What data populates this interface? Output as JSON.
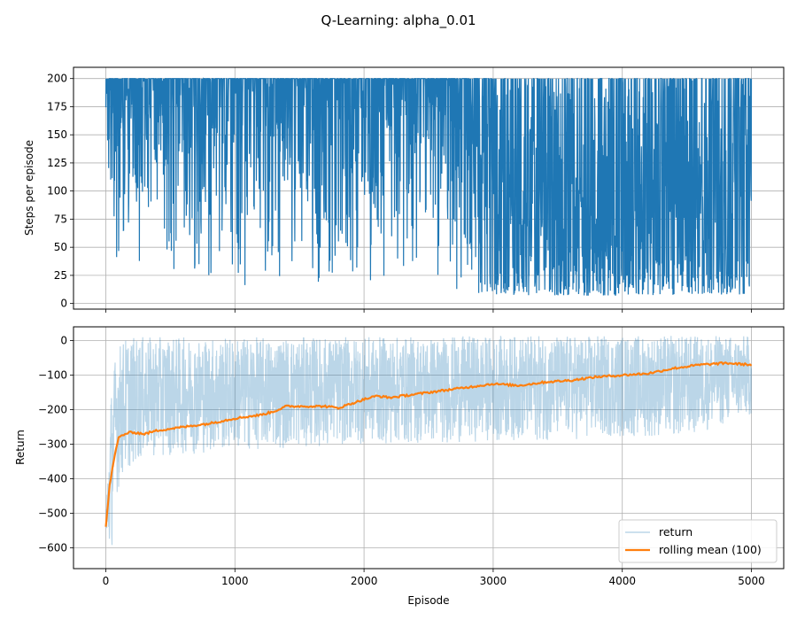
{
  "figure": {
    "suptitle": "Q-Learning: alpha_0.01"
  },
  "colors": {
    "steps_line": "#1f77b4",
    "return_line": "#1f77b4",
    "rolling_line": "#ff7f0e",
    "grid": "#b0b0b0"
  },
  "chart_data": [
    {
      "type": "line",
      "title": "",
      "xlabel": "",
      "ylabel": "Steps per episode",
      "xlim": [
        -250,
        5250
      ],
      "ylim": [
        -5,
        210
      ],
      "xticks": [
        0,
        1000,
        2000,
        3000,
        4000,
        5000
      ],
      "yticks": [
        0,
        25,
        50,
        75,
        100,
        125,
        150,
        175,
        200
      ],
      "grid": true,
      "series": [
        {
          "name": "",
          "episodes": 5000,
          "max": 200,
          "min_envelope": {
            "x": [
              0,
              30,
              60,
              100,
              200,
              400,
              800,
              1200,
              1600,
              2000,
              2500,
              3000,
              3500,
              4000,
              4500,
              5000
            ],
            "y": [
              150,
              70,
              40,
              30,
              15,
              15,
              14,
              14,
              13,
              12,
              9,
              8,
              7,
              7,
              8,
              8
            ]
          }
        }
      ]
    },
    {
      "type": "line",
      "title": "",
      "xlabel": "Episode",
      "ylabel": "Return",
      "xlim": [
        -250,
        5250
      ],
      "ylim": [
        -660,
        40
      ],
      "xticks": [
        0,
        1000,
        2000,
        3000,
        4000,
        5000
      ],
      "xtick_labels": [
        "0",
        "1000",
        "2000",
        "3000",
        "4000",
        "5000"
      ],
      "yticks": [
        0,
        -100,
        -200,
        -300,
        -400,
        -500,
        -600
      ],
      "ytick_labels": [
        "0",
        "−100",
        "−200",
        "−300",
        "−400",
        "−500",
        "−600"
      ],
      "grid": true,
      "legend_position": "bottom-right",
      "series": [
        {
          "name": "return",
          "alpha": 0.3,
          "lower_envelope": {
            "x": [
              0,
              40,
              80,
              150,
              300,
              600,
              1000,
              1500,
              2000,
              2500,
              3000,
              3500,
              4000,
              4500,
              5000
            ],
            "y": [
              -600,
              -630,
              -450,
              -380,
              -340,
              -330,
              -320,
              -310,
              -300,
              -300,
              -290,
              -290,
              -280,
              -280,
              -220
            ]
          },
          "upper_envelope": {
            "x": [
              0,
              40,
              80,
              150,
              300,
              600,
              1000,
              1500,
              2000,
              2500,
              3000,
              3500,
              4000,
              4500,
              5000
            ],
            "y": [
              -500,
              -150,
              -20,
              10,
              10,
              10,
              10,
              10,
              10,
              12,
              14,
              15,
              15,
              15,
              15
            ]
          }
        },
        {
          "name": "rolling mean (100)",
          "x": [
            0,
            10,
            30,
            60,
            100,
            150,
            200,
            300,
            400,
            500,
            600,
            800,
            1000,
            1200,
            1300,
            1400,
            1500,
            1700,
            1800,
            2000,
            2100,
            2200,
            2400,
            2600,
            2800,
            3000,
            3200,
            3400,
            3600,
            3800,
            4000,
            4200,
            4400,
            4600,
            4800,
            5000
          ],
          "y": [
            -540,
            -500,
            -420,
            -350,
            -280,
            -270,
            -265,
            -270,
            -260,
            -255,
            -250,
            -240,
            -225,
            -215,
            -205,
            -190,
            -190,
            -190,
            -195,
            -170,
            -160,
            -165,
            -155,
            -145,
            -135,
            -125,
            -130,
            -120,
            -115,
            -105,
            -100,
            -95,
            -80,
            -70,
            -65,
            -70
          ]
        }
      ]
    }
  ]
}
